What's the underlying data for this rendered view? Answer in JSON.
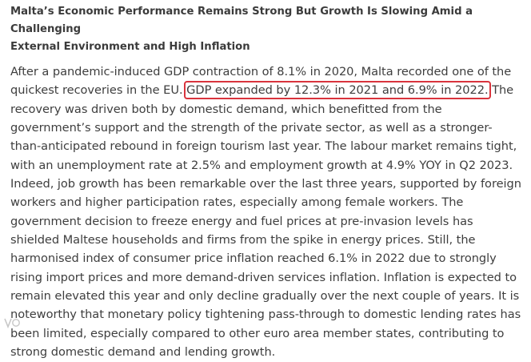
{
  "article": {
    "title_line1": "Malta’s Economic Performance Remains Strong But Growth Is Slowing Amid a Challenging",
    "title_line2": "External Environment and High Inflation",
    "para_before": "After a pandemic-induced GDP contraction of 8.1% in 2020, Malta recorded one of the quickest recoveries in the EU. ",
    "para_highlight": "GDP expanded by 12.3% in 2021 and 6.9% in 2022.",
    "para_after": " The recovery was driven both by domestic demand, which benefitted from the government’s support and the strength of the private sector, as well as a stronger-than-anticipated rebound in foreign tourism last year. The labour market remains tight, with an unemployment rate at 2.5% and employment growth at 4.9% YOY in Q2 2023. Indeed, job growth has been remarkable over the last three years, supported by foreign workers and higher participation rates, especially among female workers. The government decision to freeze energy and fuel prices at pre-invasion levels has shielded Maltese households and firms from the spike in energy prices. Still, the harmonised index of consumer price inflation reached 6.1% in 2022 due to strongly rising import prices and more demand-driven services inflation. Inflation is expected to remain elevated this year and only decline gradually over the next couple of years. It is noteworthy that monetary policy tightening pass-through to domestic lending rates has been limited, especially compared to other euro area member states, contributing to strong domestic demand and lending growth."
  },
  "highlight": {
    "color": "#d9343d"
  },
  "watermark": {
    "icon": "watermark-logo-icon"
  }
}
